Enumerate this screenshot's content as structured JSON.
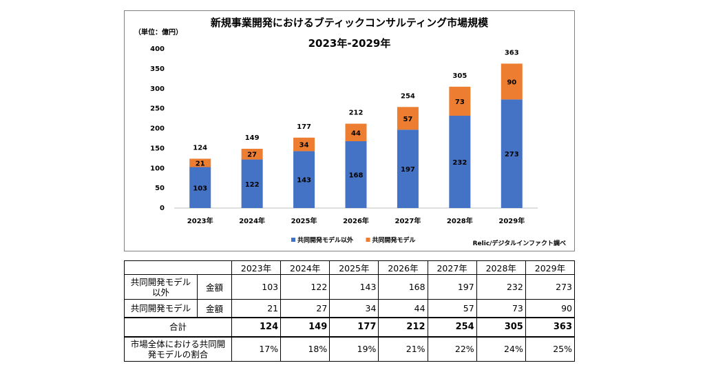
{
  "chart_data": {
    "type": "bar",
    "title": "新規事業開発におけるブティックコンサルティング市場規模",
    "subtitle": "2023年-2029年",
    "unit": "（単位：億円）",
    "source": "Relic/デジタルインファクト調べ",
    "categories": [
      "2023年",
      "2024年",
      "2025年",
      "2026年",
      "2027年",
      "2028年",
      "2029年"
    ],
    "series": [
      {
        "name": "共同開発モデル以外",
        "values": [
          103,
          122,
          143,
          168,
          197,
          232,
          273
        ],
        "color": "#4472c4"
      },
      {
        "name": "共同開発モデル",
        "values": [
          21,
          27,
          34,
          44,
          57,
          73,
          90
        ],
        "color": "#ed7d31"
      }
    ],
    "totals": [
      124,
      149,
      177,
      212,
      254,
      305,
      363
    ],
    "ylim": [
      0,
      400
    ],
    "yticks": [
      0,
      50,
      100,
      150,
      200,
      250,
      300,
      350,
      400
    ],
    "stacked": true,
    "legend_position": "bottom",
    "grid": false
  },
  "table": {
    "years": [
      "2023年",
      "2024年",
      "2025年",
      "2026年",
      "2027年",
      "2028年",
      "2029年"
    ],
    "rows": [
      {
        "label": "共同開発モデル以外",
        "sub": "金額",
        "values": [
          "103",
          "122",
          "143",
          "168",
          "197",
          "232",
          "273"
        ]
      },
      {
        "label": "共同開発モデル",
        "sub": "金額",
        "values": [
          "21",
          "27",
          "34",
          "44",
          "57",
          "73",
          "90"
        ]
      },
      {
        "label": "合計",
        "values": [
          "124",
          "149",
          "177",
          "212",
          "254",
          "305",
          "363"
        ]
      },
      {
        "label": "市場全体における共同開発モデルの割合",
        "values": [
          "17%",
          "18%",
          "19%",
          "21%",
          "22%",
          "24%",
          "25%"
        ]
      }
    ]
  }
}
